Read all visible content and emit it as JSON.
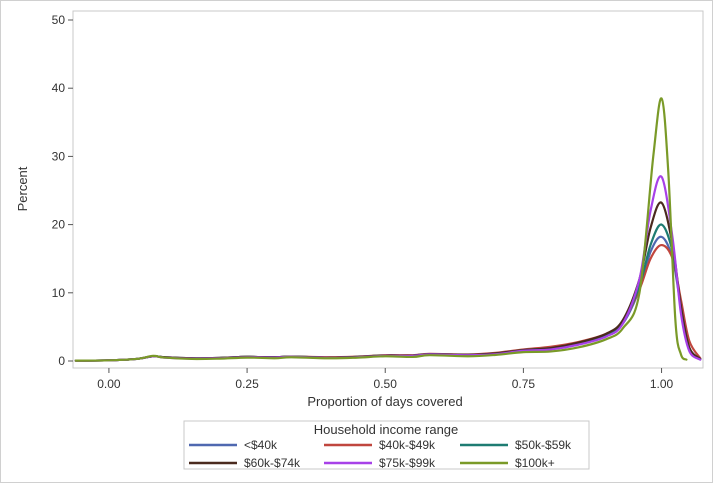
{
  "chart_data": {
    "type": "line",
    "title": "",
    "xlabel": "Proportion of days covered",
    "ylabel": "Percent",
    "xlim": [
      -0.065,
      1.075
    ],
    "ylim": [
      0,
      50
    ],
    "xticks": [
      0.0,
      0.25,
      0.5,
      0.75,
      1.0
    ],
    "xtick_labels": [
      "0.00",
      "0.25",
      "0.50",
      "0.75",
      "1.00"
    ],
    "yticks": [
      0,
      10,
      20,
      30,
      40,
      50
    ],
    "ytick_labels": [
      "0",
      "10",
      "20",
      "30",
      "40",
      "50"
    ],
    "grid": false,
    "legend": {
      "title": "Household income range",
      "placement": "bottom"
    },
    "series": [
      {
        "name": "<$40k",
        "color": "#4f68b0",
        "points": [
          [
            -0.06,
            0.05
          ],
          [
            0.0,
            0.1
          ],
          [
            0.05,
            0.3
          ],
          [
            0.08,
            0.7
          ],
          [
            0.1,
            0.55
          ],
          [
            0.15,
            0.4
          ],
          [
            0.2,
            0.45
          ],
          [
            0.25,
            0.6
          ],
          [
            0.3,
            0.55
          ],
          [
            0.33,
            0.65
          ],
          [
            0.4,
            0.5
          ],
          [
            0.45,
            0.6
          ],
          [
            0.5,
            0.8
          ],
          [
            0.55,
            0.8
          ],
          [
            0.58,
            1.0
          ],
          [
            0.65,
            0.9
          ],
          [
            0.7,
            1.1
          ],
          [
            0.75,
            1.6
          ],
          [
            0.8,
            1.9
          ],
          [
            0.85,
            2.6
          ],
          [
            0.9,
            3.8
          ],
          [
            0.93,
            5.5
          ],
          [
            0.96,
            10.5
          ],
          [
            0.98,
            16.0
          ],
          [
            1.0,
            18.2
          ],
          [
            1.02,
            15.0
          ],
          [
            1.035,
            8.0
          ],
          [
            1.05,
            2.0
          ],
          [
            1.07,
            0.3
          ]
        ]
      },
      {
        "name": "$40k-$49k",
        "color": "#c0463e",
        "points": [
          [
            -0.06,
            0.05
          ],
          [
            0.0,
            0.1
          ],
          [
            0.05,
            0.3
          ],
          [
            0.08,
            0.7
          ],
          [
            0.1,
            0.55
          ],
          [
            0.15,
            0.4
          ],
          [
            0.2,
            0.45
          ],
          [
            0.25,
            0.6
          ],
          [
            0.3,
            0.55
          ],
          [
            0.33,
            0.65
          ],
          [
            0.4,
            0.55
          ],
          [
            0.45,
            0.65
          ],
          [
            0.5,
            0.85
          ],
          [
            0.55,
            0.85
          ],
          [
            0.58,
            1.05
          ],
          [
            0.65,
            0.95
          ],
          [
            0.7,
            1.2
          ],
          [
            0.75,
            1.7
          ],
          [
            0.8,
            2.1
          ],
          [
            0.85,
            2.8
          ],
          [
            0.9,
            4.0
          ],
          [
            0.93,
            5.8
          ],
          [
            0.96,
            10.5
          ],
          [
            0.98,
            15.0
          ],
          [
            1.0,
            17.0
          ],
          [
            1.02,
            15.0
          ],
          [
            1.035,
            9.0
          ],
          [
            1.05,
            3.0
          ],
          [
            1.07,
            0.4
          ]
        ]
      },
      {
        "name": "$50k-$59k",
        "color": "#1e7c72",
        "points": [
          [
            -0.06,
            0.05
          ],
          [
            0.0,
            0.1
          ],
          [
            0.05,
            0.3
          ],
          [
            0.08,
            0.7
          ],
          [
            0.1,
            0.55
          ],
          [
            0.15,
            0.4
          ],
          [
            0.2,
            0.45
          ],
          [
            0.25,
            0.6
          ],
          [
            0.3,
            0.55
          ],
          [
            0.33,
            0.65
          ],
          [
            0.4,
            0.5
          ],
          [
            0.45,
            0.6
          ],
          [
            0.5,
            0.8
          ],
          [
            0.55,
            0.8
          ],
          [
            0.58,
            1.0
          ],
          [
            0.65,
            0.9
          ],
          [
            0.7,
            1.1
          ],
          [
            0.75,
            1.6
          ],
          [
            0.8,
            1.9
          ],
          [
            0.85,
            2.6
          ],
          [
            0.9,
            3.9
          ],
          [
            0.93,
            5.8
          ],
          [
            0.96,
            11.0
          ],
          [
            0.98,
            17.0
          ],
          [
            1.0,
            20.0
          ],
          [
            1.02,
            16.0
          ],
          [
            1.035,
            8.0
          ],
          [
            1.05,
            2.0
          ],
          [
            1.07,
            0.3
          ]
        ]
      },
      {
        "name": "$60k-$74k",
        "color": "#4a2a1e",
        "points": [
          [
            -0.06,
            0.05
          ],
          [
            0.0,
            0.1
          ],
          [
            0.05,
            0.3
          ],
          [
            0.08,
            0.7
          ],
          [
            0.1,
            0.55
          ],
          [
            0.15,
            0.4
          ],
          [
            0.2,
            0.45
          ],
          [
            0.25,
            0.6
          ],
          [
            0.3,
            0.55
          ],
          [
            0.33,
            0.65
          ],
          [
            0.4,
            0.5
          ],
          [
            0.45,
            0.6
          ],
          [
            0.5,
            0.8
          ],
          [
            0.55,
            0.8
          ],
          [
            0.58,
            1.0
          ],
          [
            0.65,
            0.9
          ],
          [
            0.7,
            1.1
          ],
          [
            0.75,
            1.6
          ],
          [
            0.8,
            1.9
          ],
          [
            0.85,
            2.7
          ],
          [
            0.9,
            4.0
          ],
          [
            0.93,
            6.0
          ],
          [
            0.96,
            12.0
          ],
          [
            0.98,
            19.5
          ],
          [
            1.0,
            23.2
          ],
          [
            1.02,
            17.0
          ],
          [
            1.035,
            8.0
          ],
          [
            1.05,
            2.0
          ],
          [
            1.07,
            0.3
          ]
        ]
      },
      {
        "name": "$75k-$99k",
        "color": "#a741e8",
        "points": [
          [
            -0.06,
            0.05
          ],
          [
            0.0,
            0.1
          ],
          [
            0.05,
            0.3
          ],
          [
            0.08,
            0.7
          ],
          [
            0.1,
            0.5
          ],
          [
            0.15,
            0.35
          ],
          [
            0.2,
            0.4
          ],
          [
            0.25,
            0.55
          ],
          [
            0.3,
            0.5
          ],
          [
            0.33,
            0.6
          ],
          [
            0.4,
            0.45
          ],
          [
            0.45,
            0.55
          ],
          [
            0.5,
            0.75
          ],
          [
            0.55,
            0.75
          ],
          [
            0.58,
            0.95
          ],
          [
            0.65,
            0.85
          ],
          [
            0.7,
            1.0
          ],
          [
            0.75,
            1.5
          ],
          [
            0.8,
            1.7
          ],
          [
            0.85,
            2.4
          ],
          [
            0.9,
            3.6
          ],
          [
            0.93,
            5.5
          ],
          [
            0.96,
            12.0
          ],
          [
            0.98,
            22.0
          ],
          [
            1.0,
            27.0
          ],
          [
            1.02,
            18.0
          ],
          [
            1.035,
            7.0
          ],
          [
            1.05,
            1.5
          ],
          [
            1.07,
            0.2
          ]
        ]
      },
      {
        "name": "$100k+",
        "color": "#7a9a28",
        "points": [
          [
            -0.06,
            0.05
          ],
          [
            0.0,
            0.1
          ],
          [
            0.05,
            0.3
          ],
          [
            0.08,
            0.75
          ],
          [
            0.1,
            0.5
          ],
          [
            0.15,
            0.3
          ],
          [
            0.2,
            0.35
          ],
          [
            0.25,
            0.5
          ],
          [
            0.3,
            0.4
          ],
          [
            0.33,
            0.55
          ],
          [
            0.4,
            0.4
          ],
          [
            0.45,
            0.5
          ],
          [
            0.5,
            0.7
          ],
          [
            0.55,
            0.6
          ],
          [
            0.58,
            0.85
          ],
          [
            0.65,
            0.7
          ],
          [
            0.7,
            0.9
          ],
          [
            0.75,
            1.3
          ],
          [
            0.8,
            1.4
          ],
          [
            0.85,
            2.0
          ],
          [
            0.9,
            3.2
          ],
          [
            0.93,
            4.8
          ],
          [
            0.96,
            10.0
          ],
          [
            0.985,
            30.0
          ],
          [
            1.0,
            38.5
          ],
          [
            1.012,
            28.0
          ],
          [
            1.025,
            6.0
          ],
          [
            1.035,
            1.0
          ],
          [
            1.045,
            0.2
          ]
        ]
      }
    ]
  }
}
